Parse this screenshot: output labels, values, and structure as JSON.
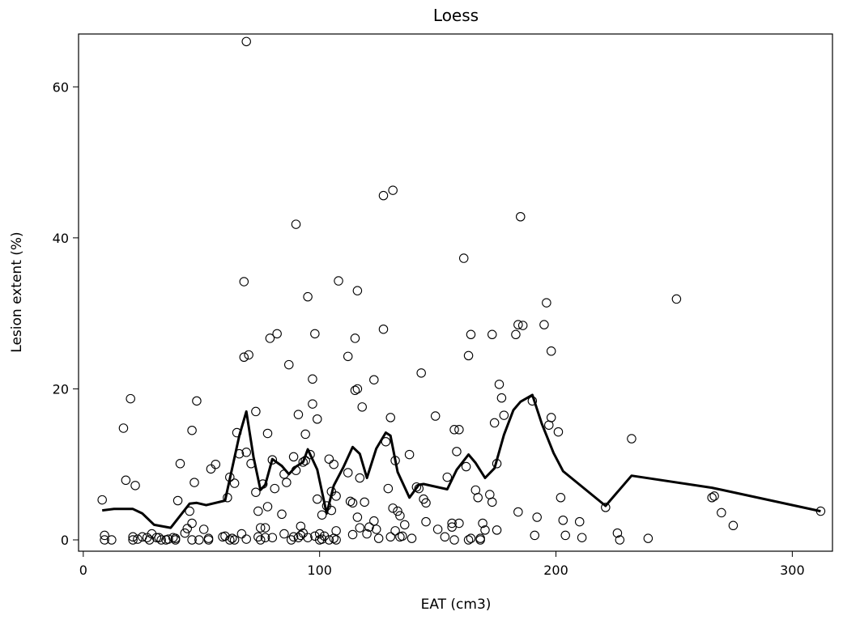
{
  "chart_data": {
    "type": "scatter",
    "title": "Loess",
    "xlabel": "EAT (cm3)",
    "ylabel": "Lesion extent (%)",
    "xlim": [
      -2,
      317
    ],
    "ylim": [
      -1.5,
      67
    ],
    "xticks": [
      0,
      100,
      200,
      300
    ],
    "yticks": [
      0,
      20,
      40,
      60
    ],
    "x_tick_labels": [
      "0",
      "100",
      "200",
      "300"
    ],
    "y_tick_labels": [
      "0",
      "20",
      "40",
      "60"
    ],
    "grid": false,
    "legend": "none",
    "series": [
      {
        "name": "observations",
        "marker": "open-circle",
        "points": [
          [
            8,
            5.3
          ],
          [
            9,
            0.6
          ],
          [
            9,
            0
          ],
          [
            12,
            0
          ],
          [
            17,
            14.8
          ],
          [
            18,
            7.9
          ],
          [
            20,
            18.7
          ],
          [
            21,
            0.4
          ],
          [
            21,
            0
          ],
          [
            22,
            7.2
          ],
          [
            23,
            0.1
          ],
          [
            25,
            0.4
          ],
          [
            27,
            0.3
          ],
          [
            28,
            0
          ],
          [
            29,
            0.8
          ],
          [
            31,
            0.3
          ],
          [
            32,
            0.3
          ],
          [
            33,
            0
          ],
          [
            35,
            0
          ],
          [
            36,
            0.1
          ],
          [
            38,
            0.3
          ],
          [
            39,
            0
          ],
          [
            39,
            0.2
          ],
          [
            40,
            5.2
          ],
          [
            41,
            10.1
          ],
          [
            43,
            0.9
          ],
          [
            44,
            1.5
          ],
          [
            45,
            3.8
          ],
          [
            46,
            2.2
          ],
          [
            46,
            14.5
          ],
          [
            46,
            0
          ],
          [
            47,
            7.6
          ],
          [
            48,
            18.4
          ],
          [
            49,
            0
          ],
          [
            51,
            1.4
          ],
          [
            53,
            0.2
          ],
          [
            53,
            0
          ],
          [
            54,
            9.4
          ],
          [
            56,
            10
          ],
          [
            59,
            0.4
          ],
          [
            60,
            0.5
          ],
          [
            61,
            5.6
          ],
          [
            62,
            8.3
          ],
          [
            62,
            0
          ],
          [
            63,
            0.2
          ],
          [
            64,
            7.5
          ],
          [
            64,
            0
          ],
          [
            65,
            14.2
          ],
          [
            66,
            11.4
          ],
          [
            67,
            0.8
          ],
          [
            68,
            24.2
          ],
          [
            68,
            34.2
          ],
          [
            69,
            66
          ],
          [
            69,
            11.6
          ],
          [
            69,
            0.1
          ],
          [
            70,
            24.5
          ],
          [
            71,
            10.1
          ],
          [
            73,
            6.3
          ],
          [
            73,
            17
          ],
          [
            74,
            3.8
          ],
          [
            74,
            0.4
          ],
          [
            75,
            0
          ],
          [
            75,
            1.6
          ],
          [
            76,
            7.4
          ],
          [
            77,
            1.6
          ],
          [
            77,
            0.3
          ],
          [
            78,
            4.4
          ],
          [
            78,
            14.1
          ],
          [
            79,
            26.7
          ],
          [
            80,
            10.6
          ],
          [
            80,
            0.3
          ],
          [
            81,
            6.8
          ],
          [
            82,
            27.3
          ],
          [
            84,
            3.4
          ],
          [
            85,
            8.7
          ],
          [
            85,
            0.8
          ],
          [
            86,
            7.6
          ],
          [
            87,
            23.2
          ],
          [
            88,
            0
          ],
          [
            89,
            11
          ],
          [
            89,
            0.4
          ],
          [
            90,
            41.8
          ],
          [
            90,
            9.2
          ],
          [
            91,
            16.6
          ],
          [
            91,
            0.3
          ],
          [
            92,
            0.6
          ],
          [
            92,
            1.8
          ],
          [
            93,
            10.3
          ],
          [
            93,
            0.9
          ],
          [
            94,
            10.5
          ],
          [
            94,
            14
          ],
          [
            95,
            32.2
          ],
          [
            95,
            0.3
          ],
          [
            96,
            11.3
          ],
          [
            97,
            21.3
          ],
          [
            97,
            18
          ],
          [
            98,
            27.3
          ],
          [
            98,
            0.5
          ],
          [
            99,
            16
          ],
          [
            99,
            5.4
          ],
          [
            100,
            0.8
          ],
          [
            100,
            0
          ],
          [
            101,
            3.3
          ],
          [
            101,
            0.1
          ],
          [
            102,
            0.5
          ],
          [
            103,
            4.5
          ],
          [
            104,
            10.7
          ],
          [
            104,
            0
          ],
          [
            105,
            3.9
          ],
          [
            105,
            6.4
          ],
          [
            106,
            0.2
          ],
          [
            106,
            10
          ],
          [
            107,
            0
          ],
          [
            107,
            5.8
          ],
          [
            107,
            1.2
          ],
          [
            108,
            34.3
          ],
          [
            112,
            8.9
          ],
          [
            112,
            24.3
          ],
          [
            113,
            5.1
          ],
          [
            114,
            0.7
          ],
          [
            114,
            4.9
          ],
          [
            115,
            26.7
          ],
          [
            115,
            19.8
          ],
          [
            116,
            20
          ],
          [
            116,
            33
          ],
          [
            116,
            3
          ],
          [
            117,
            1.6
          ],
          [
            117,
            8.2
          ],
          [
            118,
            17.6
          ],
          [
            119,
            5
          ],
          [
            120,
            0.8
          ],
          [
            121,
            1.7
          ],
          [
            123,
            21.2
          ],
          [
            123,
            2.5
          ],
          [
            124,
            1.4
          ],
          [
            125,
            0.2
          ],
          [
            127,
            27.9
          ],
          [
            127,
            45.6
          ],
          [
            128,
            13
          ],
          [
            129,
            6.8
          ],
          [
            130,
            0.4
          ],
          [
            130,
            16.2
          ],
          [
            131,
            46.3
          ],
          [
            131,
            4.2
          ],
          [
            132,
            10.5
          ],
          [
            132,
            1.2
          ],
          [
            133,
            3.8
          ],
          [
            134,
            3.2
          ],
          [
            134,
            0.4
          ],
          [
            135,
            0.5
          ],
          [
            136,
            2
          ],
          [
            138,
            11.3
          ],
          [
            139,
            0.2
          ],
          [
            141,
            7
          ],
          [
            142,
            6.8
          ],
          [
            143,
            22.1
          ],
          [
            144,
            5.4
          ],
          [
            145,
            2.4
          ],
          [
            145,
            4.9
          ],
          [
            149,
            16.4
          ],
          [
            150,
            1.4
          ],
          [
            153,
            0.4
          ],
          [
            154,
            8.3
          ],
          [
            156,
            2.2
          ],
          [
            156,
            1.7
          ],
          [
            157,
            0
          ],
          [
            157,
            14.6
          ],
          [
            158,
            11.7
          ],
          [
            159,
            14.6
          ],
          [
            159,
            2.2
          ],
          [
            161,
            37.3
          ],
          [
            162,
            9.7
          ],
          [
            163,
            24.4
          ],
          [
            163,
            0
          ],
          [
            164,
            27.2
          ],
          [
            164,
            0.2
          ],
          [
            166,
            6.6
          ],
          [
            167,
            5.6
          ],
          [
            168,
            0.2
          ],
          [
            168,
            0
          ],
          [
            169,
            2.2
          ],
          [
            170,
            1.3
          ],
          [
            172,
            6
          ],
          [
            173,
            27.2
          ],
          [
            173,
            5
          ],
          [
            174,
            15.5
          ],
          [
            175,
            10.1
          ],
          [
            175,
            1.3
          ],
          [
            176,
            20.6
          ],
          [
            177,
            18.8
          ],
          [
            178,
            16.5
          ],
          [
            183,
            27.2
          ],
          [
            184,
            28.5
          ],
          [
            184,
            3.7
          ],
          [
            185,
            42.8
          ],
          [
            186,
            28.4
          ],
          [
            190,
            18.4
          ],
          [
            191,
            0.6
          ],
          [
            192,
            3
          ],
          [
            195,
            28.5
          ],
          [
            196,
            31.4
          ],
          [
            197,
            15.2
          ],
          [
            198,
            25
          ],
          [
            198,
            16.2
          ],
          [
            201,
            14.3
          ],
          [
            202,
            5.6
          ],
          [
            203,
            2.6
          ],
          [
            204,
            0.6
          ],
          [
            210,
            2.4
          ],
          [
            211,
            0.3
          ],
          [
            221,
            4.3
          ],
          [
            226,
            0.9
          ],
          [
            227,
            0
          ],
          [
            232,
            13.4
          ],
          [
            239,
            0.2
          ],
          [
            251,
            31.9
          ],
          [
            266,
            5.6
          ],
          [
            267,
            5.8
          ],
          [
            270,
            3.6
          ],
          [
            275,
            1.9
          ],
          [
            312,
            3.8
          ]
        ]
      },
      {
        "name": "loess",
        "type": "line",
        "points": [
          [
            8,
            3.9
          ],
          [
            13,
            4.1
          ],
          [
            21,
            4.1
          ],
          [
            25,
            3.5
          ],
          [
            30,
            2
          ],
          [
            37,
            1.6
          ],
          [
            45,
            4.8
          ],
          [
            48,
            4.9
          ],
          [
            52,
            4.6
          ],
          [
            60,
            5.2
          ],
          [
            66,
            13.8
          ],
          [
            69,
            17
          ],
          [
            72,
            11
          ],
          [
            75,
            6.6
          ],
          [
            77,
            7.3
          ],
          [
            80,
            10.7
          ],
          [
            84,
            9.8
          ],
          [
            87,
            8.7
          ],
          [
            90,
            9.7
          ],
          [
            93,
            10.3
          ],
          [
            95,
            12
          ],
          [
            99,
            9.3
          ],
          [
            103,
            3.5
          ],
          [
            106,
            7.2
          ],
          [
            110,
            9.6
          ],
          [
            114,
            12.3
          ],
          [
            117,
            11.4
          ],
          [
            120,
            8.2
          ],
          [
            124,
            12.1
          ],
          [
            128,
            14.2
          ],
          [
            130,
            13.8
          ],
          [
            133,
            9
          ],
          [
            138,
            5.6
          ],
          [
            142,
            7.3
          ],
          [
            144,
            7.4
          ],
          [
            154,
            6.7
          ],
          [
            158,
            9.3
          ],
          [
            163,
            11.3
          ],
          [
            166,
            10.2
          ],
          [
            170,
            8.2
          ],
          [
            174,
            9.5
          ],
          [
            178,
            13.9
          ],
          [
            182,
            17.2
          ],
          [
            185,
            18.3
          ],
          [
            190,
            19.2
          ],
          [
            194,
            15.4
          ],
          [
            199,
            11.5
          ],
          [
            203,
            9.1
          ],
          [
            221,
            4.5
          ],
          [
            232,
            8.5
          ],
          [
            266,
            6.9
          ],
          [
            312,
            3.8
          ]
        ]
      }
    ]
  }
}
